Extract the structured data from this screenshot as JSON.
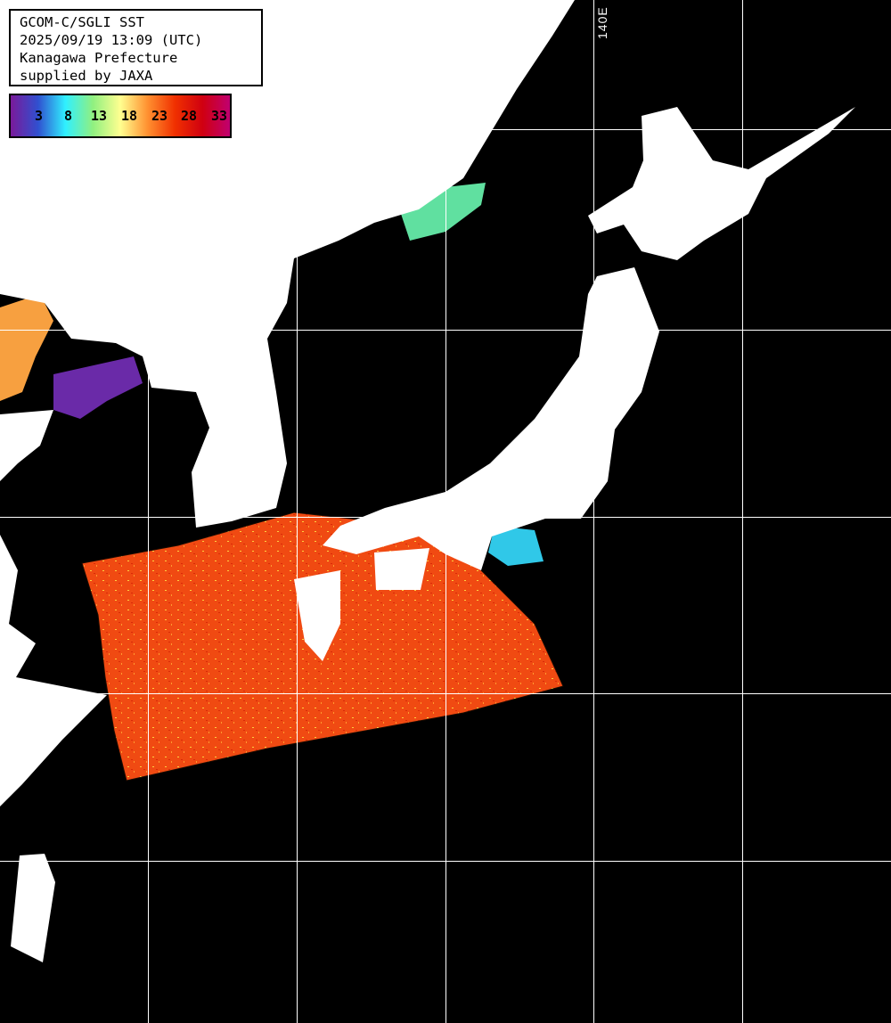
{
  "header": {
    "lines": [
      "GCOM-C/SGLI SST",
      "2025/09/19 13:09 (UTC)",
      "Kanagawa Prefecture",
      "supplied by JAXA"
    ]
  },
  "legend": {
    "labels": [
      "3",
      "8",
      "13",
      "18",
      "23",
      "28",
      "33"
    ],
    "colors": [
      "#7a1a9a",
      "#3050d0",
      "#30f0ff",
      "#90f080",
      "#ffff90",
      "#ff9030",
      "#f03000",
      "#d00010",
      "#c00070"
    ]
  },
  "grid": {
    "longitude_label": "140E"
  },
  "colors": {
    "ocean_nodata": "#000000",
    "land": "#ffffff",
    "gridline": "#ffffff",
    "sst_warm": "#f04a12"
  }
}
